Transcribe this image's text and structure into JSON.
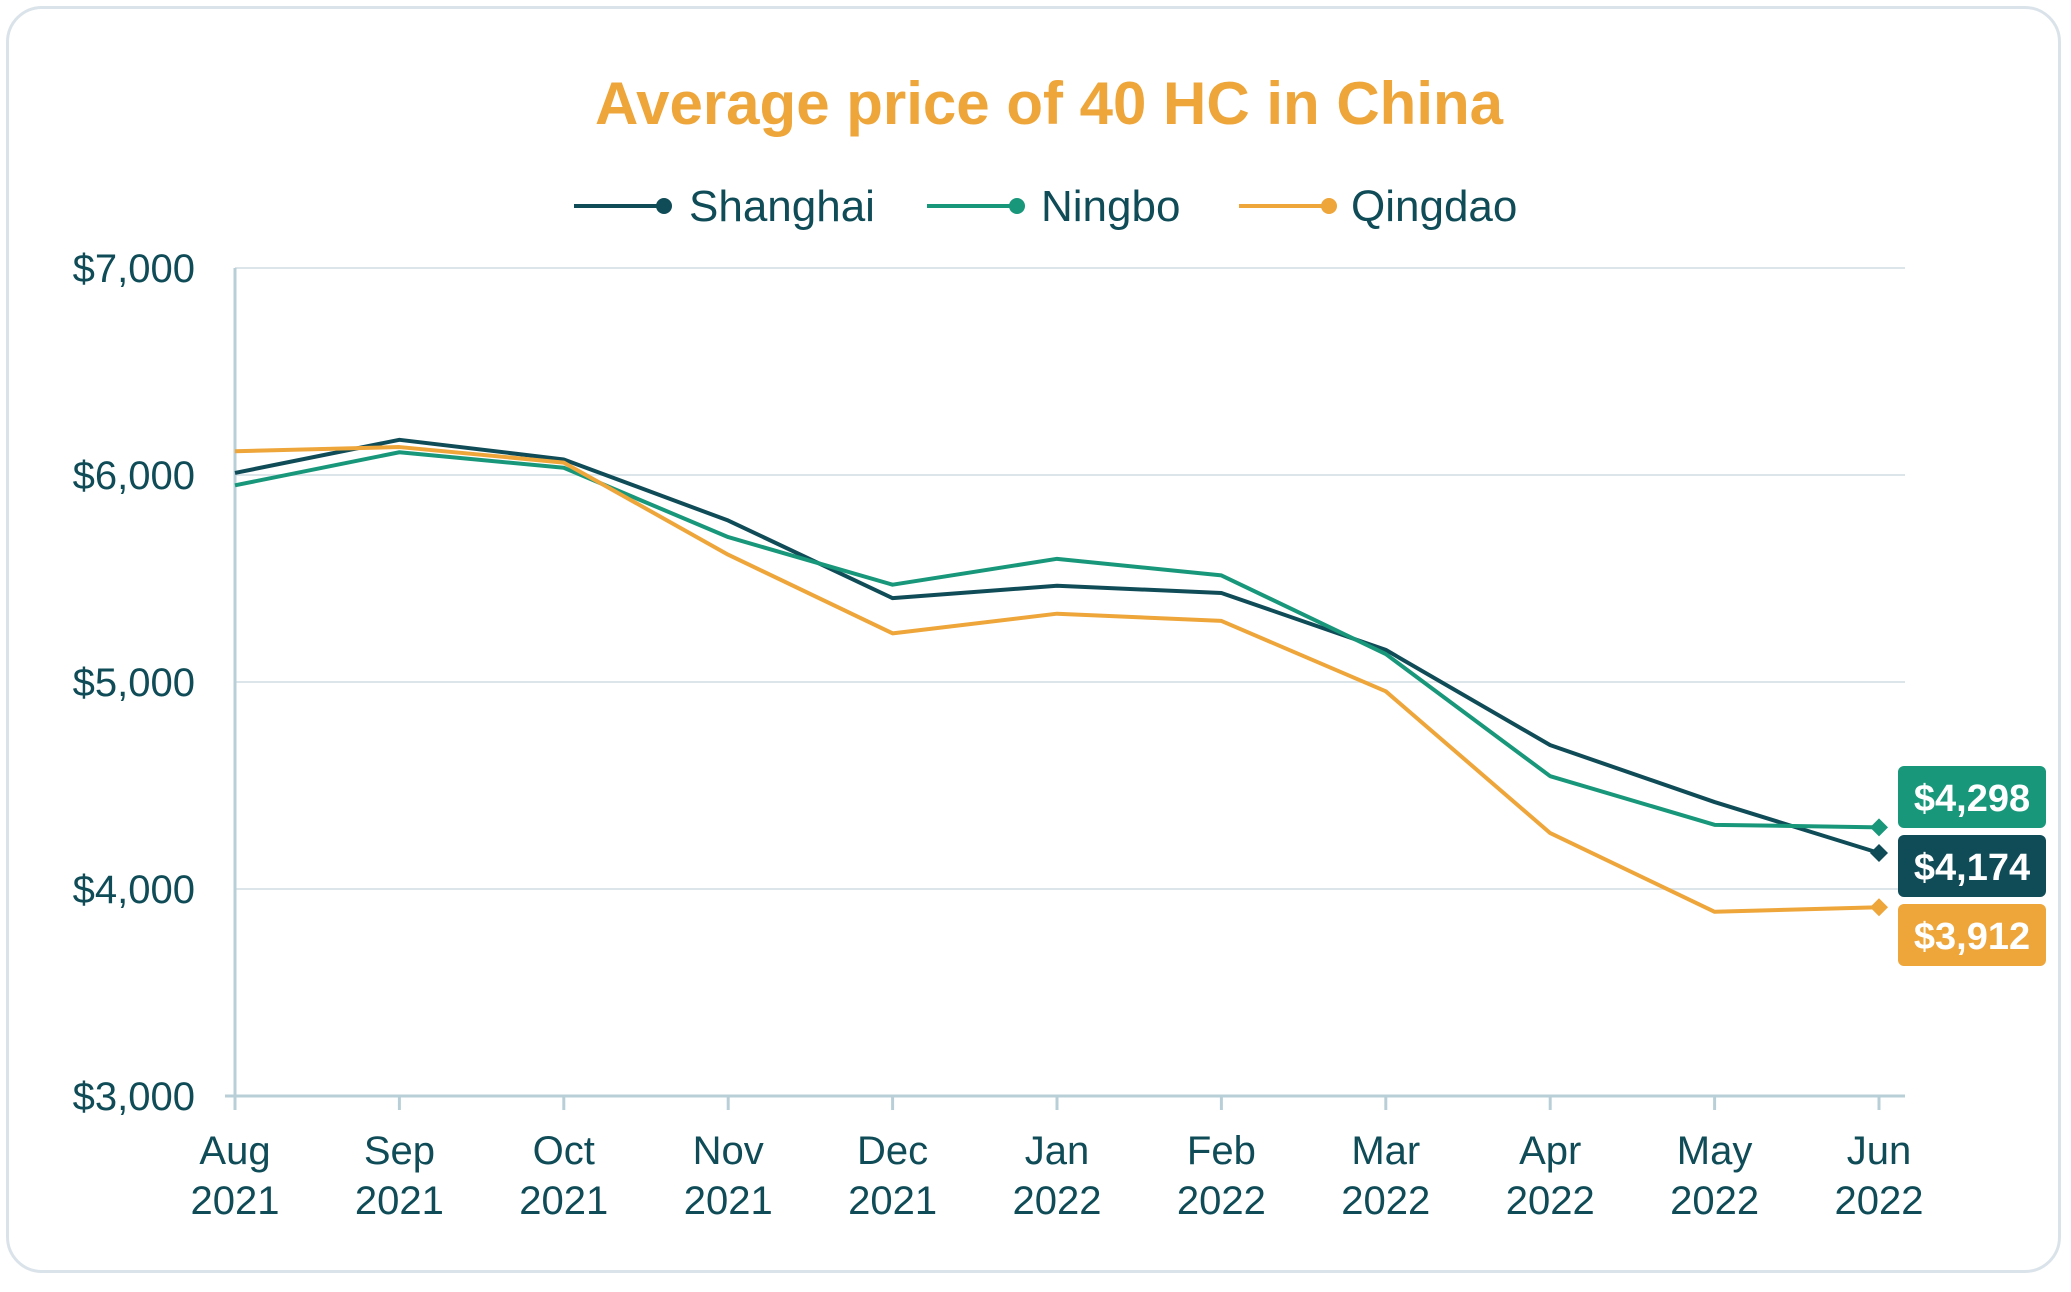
{
  "chart_data": {
    "type": "line",
    "title": "Average price of 40 HC in China",
    "xlabel": "",
    "ylabel": "",
    "ylim": [
      3000,
      7000
    ],
    "yticks": [
      "$3,000",
      "$4,000",
      "$5,000",
      "$6,000",
      "$7,000"
    ],
    "ytick_values": [
      3000,
      4000,
      5000,
      6000,
      7000
    ],
    "categories": [
      [
        "Aug",
        "2021"
      ],
      [
        "Sep",
        "2021"
      ],
      [
        "Oct",
        "2021"
      ],
      [
        "Nov",
        "2021"
      ],
      [
        "Dec",
        "2021"
      ],
      [
        "Jan",
        "2022"
      ],
      [
        "Feb",
        "2022"
      ],
      [
        "Mar",
        "2022"
      ],
      [
        "Apr",
        "2022"
      ],
      [
        "May",
        "2022"
      ],
      [
        "Jun",
        "2022"
      ]
    ],
    "grid": true,
    "legend_position": "top-center",
    "series": [
      {
        "name": "Shanghai",
        "color": "#0f4c57",
        "values": [
          6010,
          6170,
          6075,
          5780,
          5405,
          5465,
          5430,
          5155,
          4695,
          4420,
          4174
        ],
        "end_label": "$4,174"
      },
      {
        "name": "Ningbo",
        "color": "#18977a",
        "values": [
          5950,
          6110,
          6035,
          5700,
          5470,
          5595,
          5515,
          5135,
          4545,
          4310,
          4298
        ],
        "end_label": "$4,298"
      },
      {
        "name": "Qingdao",
        "color": "#eea53a",
        "values": [
          6115,
          6135,
          6060,
          5615,
          5235,
          5330,
          5295,
          4955,
          4270,
          3890,
          3912
        ],
        "end_label": "$3,912"
      }
    ],
    "title_color": "#eea53a",
    "text_color": "#0f4c57",
    "grid_color": "#dbe5ea",
    "axis_color": "#b9cfd7"
  }
}
